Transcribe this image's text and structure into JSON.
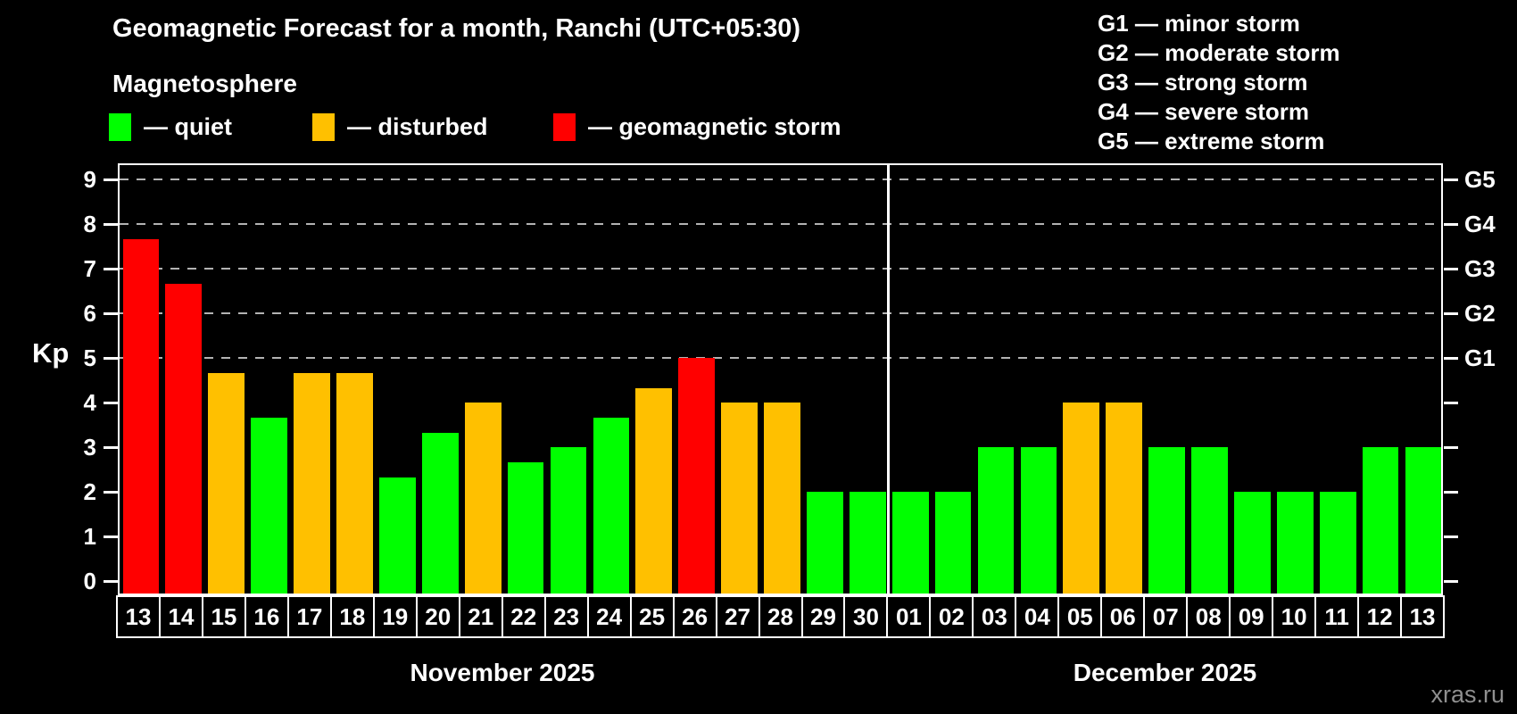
{
  "title": "Geomagnetic Forecast for a month, Ranchi (UTC+05:30)",
  "legend": {
    "heading": "Magnetosphere",
    "items": [
      {
        "label": "— quiet",
        "color": "#00ff00",
        "status": "quiet"
      },
      {
        "label": "— disturbed",
        "color": "#ffc000",
        "status": "disturbed"
      },
      {
        "label": "— geomagnetic storm",
        "color": "#ff0000",
        "status": "storm"
      }
    ]
  },
  "storm_legend": {
    "items": [
      "G1 — minor storm",
      "G2 — moderate storm",
      "G3 — strong storm",
      "G4 — severe storm",
      "G5 — extreme storm"
    ]
  },
  "watermark": "xras.ru",
  "colors": {
    "quiet": "#00ff00",
    "disturbed": "#ffc000",
    "storm": "#ff0000",
    "frame": "#ffffff",
    "gridline": "#b3b3b3",
    "background": "#000000"
  },
  "chart_data": {
    "type": "bar",
    "title": "Geomagnetic Forecast for a month, Ranchi (UTC+05:30)",
    "ylabel": "Kp",
    "xlabel": "",
    "ylim": [
      0,
      9
    ],
    "yticks": [
      0,
      1,
      2,
      3,
      4,
      5,
      6,
      7,
      8,
      9
    ],
    "gridlines_at": [
      5,
      6,
      7,
      8,
      9
    ],
    "grid": "dashed horizontal at G-storm levels only",
    "legend_position": "top",
    "right_axis": [
      {
        "kp": 5,
        "label": "G1"
      },
      {
        "kp": 6,
        "label": "G2"
      },
      {
        "kp": 7,
        "label": "G3"
      },
      {
        "kp": 8,
        "label": "G4"
      },
      {
        "kp": 9,
        "label": "G5"
      }
    ],
    "months": [
      {
        "label": "November 2025",
        "days": [
          {
            "day": "13",
            "kp": 7.67,
            "status": "storm"
          },
          {
            "day": "14",
            "kp": 6.67,
            "status": "storm"
          },
          {
            "day": "15",
            "kp": 4.67,
            "status": "disturbed"
          },
          {
            "day": "16",
            "kp": 3.67,
            "status": "quiet"
          },
          {
            "day": "17",
            "kp": 4.67,
            "status": "disturbed"
          },
          {
            "day": "18",
            "kp": 4.67,
            "status": "disturbed"
          },
          {
            "day": "19",
            "kp": 2.33,
            "status": "quiet"
          },
          {
            "day": "20",
            "kp": 3.33,
            "status": "quiet"
          },
          {
            "day": "21",
            "kp": 4.0,
            "status": "disturbed"
          },
          {
            "day": "22",
            "kp": 2.67,
            "status": "quiet"
          },
          {
            "day": "23",
            "kp": 3.0,
            "status": "quiet"
          },
          {
            "day": "24",
            "kp": 3.67,
            "status": "quiet"
          },
          {
            "day": "25",
            "kp": 4.33,
            "status": "disturbed"
          },
          {
            "day": "26",
            "kp": 5.0,
            "status": "storm"
          },
          {
            "day": "27",
            "kp": 4.0,
            "status": "disturbed"
          },
          {
            "day": "28",
            "kp": 4.0,
            "status": "disturbed"
          },
          {
            "day": "29",
            "kp": 2.0,
            "status": "quiet"
          },
          {
            "day": "30",
            "kp": 2.0,
            "status": "quiet"
          }
        ]
      },
      {
        "label": "December 2025",
        "days": [
          {
            "day": "01",
            "kp": 2.0,
            "status": "quiet"
          },
          {
            "day": "02",
            "kp": 2.0,
            "status": "quiet"
          },
          {
            "day": "03",
            "kp": 3.0,
            "status": "quiet"
          },
          {
            "day": "04",
            "kp": 3.0,
            "status": "quiet"
          },
          {
            "day": "05",
            "kp": 4.0,
            "status": "disturbed"
          },
          {
            "day": "06",
            "kp": 4.0,
            "status": "disturbed"
          },
          {
            "day": "07",
            "kp": 3.0,
            "status": "quiet"
          },
          {
            "day": "08",
            "kp": 3.0,
            "status": "quiet"
          },
          {
            "day": "09",
            "kp": 2.0,
            "status": "quiet"
          },
          {
            "day": "10",
            "kp": 2.0,
            "status": "quiet"
          },
          {
            "day": "11",
            "kp": 2.0,
            "status": "quiet"
          },
          {
            "day": "12",
            "kp": 3.0,
            "status": "quiet"
          },
          {
            "day": "13",
            "kp": 3.0,
            "status": "quiet"
          }
        ]
      }
    ]
  }
}
